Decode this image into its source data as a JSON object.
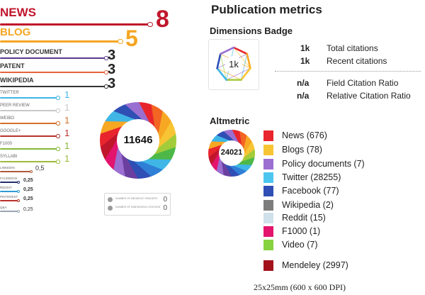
{
  "left_panel": {
    "sources": [
      {
        "label": "NEWS",
        "count": "8",
        "color": "#c0162c"
      },
      {
        "label": "BLOG",
        "count": "5",
        "color": "#f5a623"
      },
      {
        "label": "POLICY DOCUMENT",
        "count": "3",
        "color": "#5b3a8e"
      },
      {
        "label": "PATENT",
        "count": "3",
        "color": "#e8623b"
      },
      {
        "label": "WIKIPEDIA",
        "count": "3",
        "color": "#333333"
      },
      {
        "label": "TWITTER",
        "count": "1",
        "color": "#3fb6e6"
      },
      {
        "label": "PEER REVIEW",
        "count": "1",
        "color": "#c8c8c8"
      },
      {
        "label": "WEIBO",
        "count": "1",
        "color": "#d4712a"
      },
      {
        "label": "GOOGLE+",
        "count": "1",
        "color": "#b8322d"
      },
      {
        "label": "F1000",
        "count": "1",
        "color": "#86b83a"
      },
      {
        "label": "SYLLABI",
        "count": "1",
        "color": "#9dbb3a"
      },
      {
        "label": "LINKEDIN",
        "count": "0,5",
        "color": "#b05a3a"
      },
      {
        "label": "FACEBOOK",
        "count": "0,25",
        "color": "#24306e"
      },
      {
        "label": "REDDIT",
        "count": "0,25",
        "color": "#2e9cd6"
      },
      {
        "label": "PINTEREST",
        "count": "0,25",
        "color": "#b8322d"
      },
      {
        "label": "Q&A",
        "count": "0,25",
        "color": "#9aa6b2"
      }
    ],
    "score": "11646",
    "readers": [
      {
        "label": "NUMBER OF MENDELEY READERS",
        "value": "0"
      },
      {
        "label": "NUMBER OF DIMENSIONS CITATIONS",
        "value": "0"
      }
    ]
  },
  "right_panel": {
    "title": "Publication metrics",
    "dimensions": {
      "heading": "Dimensions Badge",
      "badge_value": "1k",
      "rows": [
        {
          "value": "1k",
          "label": "Total citations"
        },
        {
          "value": "1k",
          "label": "Recent citations"
        },
        {
          "value": "n/a",
          "label": "Field Citation Ratio"
        },
        {
          "value": "n/a",
          "label": "Relative Citation Ratio"
        }
      ]
    },
    "altmetric": {
      "heading": "Altmetric",
      "score": "24021",
      "legend": [
        {
          "label": "News (676)",
          "color": "#e8252c"
        },
        {
          "label": "Blogs (78)",
          "color": "#f7c534"
        },
        {
          "label": "Policy documents (7)",
          "color": "#9a6fd1"
        },
        {
          "label": "Twitter (28255)",
          "color": "#4dc6ef"
        },
        {
          "label": "Facebook (77)",
          "color": "#2f4fb5"
        },
        {
          "label": "Wikipedia (2)",
          "color": "#7d7d7d"
        },
        {
          "label": "Reddit (15)",
          "color": "#cfe1ea"
        },
        {
          "label": "F1000 (1)",
          "color": "#e3146e"
        },
        {
          "label": "Video (7)",
          "color": "#87d23f"
        },
        {
          "label": "Mendeley (2997)",
          "color": "#a3121c"
        }
      ]
    },
    "caption": "25x25mm (600 x 600 DPI)"
  }
}
